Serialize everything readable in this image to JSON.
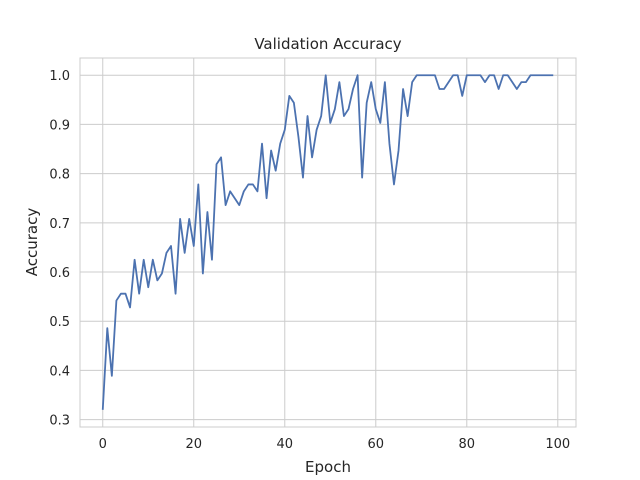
{
  "chart_data": {
    "type": "line",
    "title": "Validation Accuracy",
    "xlabel": "Epoch",
    "ylabel": "Accuracy",
    "xlim": [
      -5,
      104
    ],
    "ylim": [
      0.285,
      1.035
    ],
    "x_ticks": [
      0,
      20,
      40,
      60,
      80,
      100
    ],
    "y_ticks": [
      0.3,
      0.4,
      0.5,
      0.6,
      0.7,
      0.8,
      0.9,
      1.0
    ],
    "x_tick_labels": [
      "0",
      "20",
      "40",
      "60",
      "80",
      "100"
    ],
    "y_tick_labels": [
      "0.3",
      "0.4",
      "0.5",
      "0.6",
      "0.7",
      "0.8",
      "0.9",
      "1.0"
    ],
    "grid": true,
    "series": [
      {
        "color": "#4c72b0",
        "x": [
          0,
          1,
          2,
          3,
          4,
          5,
          6,
          7,
          8,
          9,
          10,
          11,
          12,
          13,
          14,
          15,
          16,
          17,
          18,
          19,
          20,
          21,
          22,
          23,
          24,
          25,
          26,
          27,
          28,
          29,
          30,
          31,
          32,
          33,
          34,
          35,
          36,
          37,
          38,
          39,
          40,
          41,
          42,
          43,
          44,
          45,
          46,
          47,
          48,
          49,
          50,
          51,
          52,
          53,
          54,
          55,
          56,
          57,
          58,
          59,
          60,
          61,
          62,
          63,
          64,
          65,
          66,
          67,
          68,
          69,
          70,
          71,
          72,
          73,
          74,
          75,
          76,
          77,
          78,
          79,
          80,
          81,
          82,
          83,
          84,
          85,
          86,
          87,
          88,
          89,
          90,
          91,
          92,
          93,
          94,
          95,
          96,
          97,
          98,
          99
        ],
        "values": [
          0.32,
          0.486,
          0.389,
          0.542,
          0.556,
          0.556,
          0.528,
          0.625,
          0.556,
          0.625,
          0.569,
          0.625,
          0.583,
          0.597,
          0.639,
          0.653,
          0.556,
          0.708,
          0.639,
          0.708,
          0.653,
          0.778,
          0.597,
          0.722,
          0.625,
          0.819,
          0.833,
          0.736,
          0.764,
          0.75,
          0.736,
          0.764,
          0.778,
          0.778,
          0.764,
          0.861,
          0.75,
          0.847,
          0.806,
          0.861,
          0.889,
          0.958,
          0.944,
          0.875,
          0.792,
          0.917,
          0.833,
          0.889,
          0.917,
          1.0,
          0.903,
          0.931,
          0.986,
          0.917,
          0.931,
          0.972,
          1.0,
          0.792,
          0.944,
          0.986,
          0.931,
          0.903,
          0.986,
          0.861,
          0.778,
          0.847,
          0.972,
          0.917,
          0.986,
          1.0,
          1.0,
          1.0,
          1.0,
          1.0,
          0.972,
          0.972,
          0.986,
          1.0,
          1.0,
          0.958,
          1.0,
          1.0,
          1.0,
          1.0,
          0.986,
          1.0,
          1.0,
          0.972,
          1.0,
          1.0,
          0.986,
          0.972,
          0.986,
          0.986,
          1.0,
          1.0,
          1.0,
          1.0,
          1.0,
          1.0
        ]
      }
    ]
  }
}
